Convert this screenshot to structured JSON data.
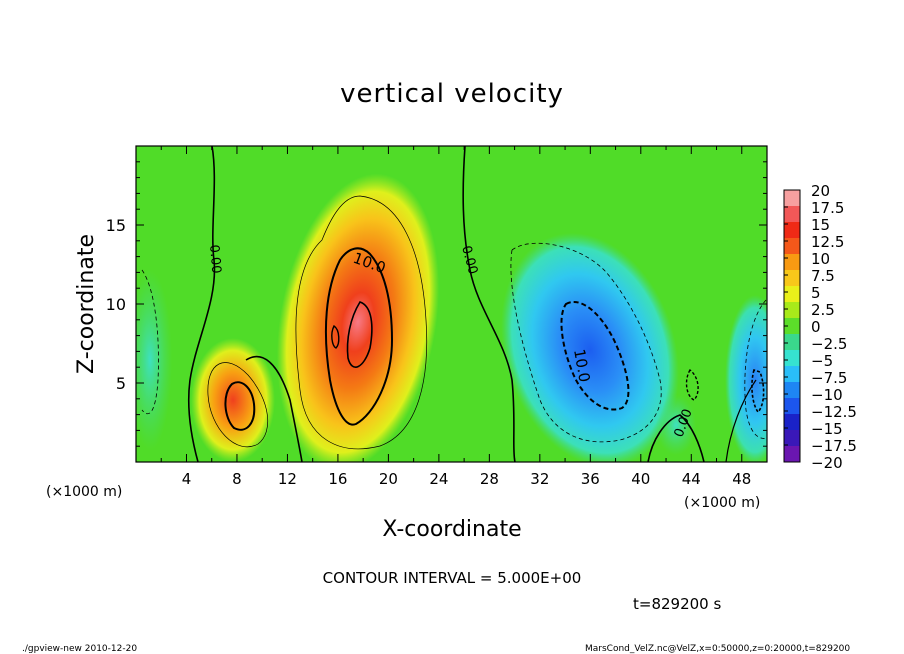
{
  "chart_data": {
    "type": "heatmap",
    "title": "vertical velocity",
    "xlabel": "X-coordinate",
    "ylabel": "Z-coordinate",
    "x_unit": "(×1000 m)",
    "y_unit": "(×1000 m)",
    "xlim": [
      0,
      50
    ],
    "ylim": [
      0,
      20
    ],
    "x_ticks": [
      "4",
      "8",
      "12",
      "16",
      "20",
      "24",
      "28",
      "32",
      "36",
      "40",
      "44",
      "48"
    ],
    "y_ticks": [
      "5",
      "10",
      "15"
    ],
    "colorbar": {
      "labels": [
        "20",
        "17.5",
        "15",
        "12.5",
        "10",
        "7.5",
        "5",
        "2.5",
        "0",
        "−2.5",
        "−5",
        "−7.5",
        "−10",
        "−12.5",
        "−15",
        "−17.5",
        "−20"
      ],
      "colors": [
        "#f7a0a0",
        "#f25858",
        "#ef2a16",
        "#f4581a",
        "#f89a12",
        "#f8c81a",
        "#eaf01a",
        "#a8ea1a",
        "#5cde2a",
        "#3ad88c",
        "#36e2d0",
        "#2abef8",
        "#1e86f4",
        "#1c56ee",
        "#1a22c8",
        "#3a18b8",
        "#6a16b0"
      ]
    },
    "features": [
      {
        "kind": "updraft",
        "x": 8,
        "z": 3.8,
        "peak": 12.5
      },
      {
        "kind": "updraft",
        "x": 18,
        "z": 8,
        "peak": 17.5
      },
      {
        "kind": "downdraft",
        "x": 36,
        "z": 7,
        "peak": -12.5
      },
      {
        "kind": "downdraft",
        "x": 49,
        "z": 4.5,
        "peak": -10
      }
    ],
    "contour_labels": [
      "0.00",
      "10.0",
      "0.00",
      "10.0",
      "0.00"
    ]
  },
  "annotations": {
    "contour_interval": "CONTOUR INTERVAL = 5.000E+00",
    "time": "t=829200 s",
    "footer_left": "./gpview-new  2010-12-20",
    "footer_right": "MarsCond_VelZ.nc@VelZ,x=0:50000,z=0:20000,t=829200"
  }
}
